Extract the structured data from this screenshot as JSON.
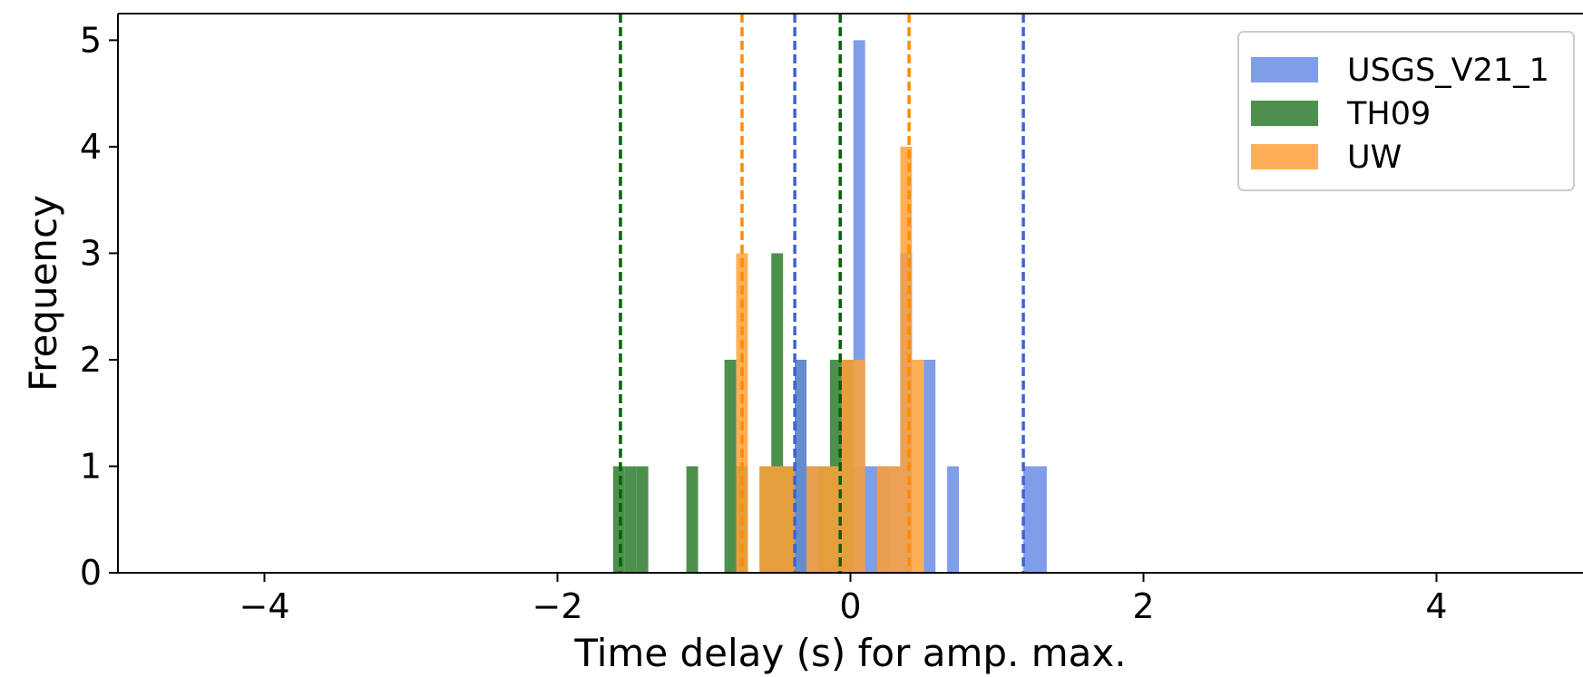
{
  "chart_data": {
    "type": "bar",
    "title": "",
    "xlabel": "Time delay (s) for amp. max.",
    "ylabel": "Frequency",
    "xlim": [
      -5,
      5
    ],
    "ylim": [
      0,
      5.25
    ],
    "xticks": [
      -4,
      -2,
      0,
      2,
      4
    ],
    "xtick_labels": [
      "−4",
      "−2",
      "0",
      "2",
      "4"
    ],
    "yticks": [
      0,
      1,
      2,
      3,
      4,
      5
    ],
    "ytick_labels": [
      "0",
      "1",
      "2",
      "3",
      "4",
      "5"
    ],
    "grid": false,
    "legend_position": "top-right",
    "series": [
      {
        "name": "TH09",
        "color": "#2e7d2e",
        "bin_width": 0.08,
        "bins": [
          {
            "x": -1.62,
            "count": 1
          },
          {
            "x": -1.54,
            "count": 1
          },
          {
            "x": -1.46,
            "count": 1
          },
          {
            "x": -1.12,
            "count": 1
          },
          {
            "x": -0.86,
            "count": 2
          },
          {
            "x": -0.78,
            "count": 1
          },
          {
            "x": -0.62,
            "count": 1
          },
          {
            "x": -0.54,
            "count": 3
          },
          {
            "x": -0.46,
            "count": 1
          },
          {
            "x": -0.38,
            "count": 2
          },
          {
            "x": -0.3,
            "count": 1
          },
          {
            "x": -0.22,
            "count": 1
          },
          {
            "x": -0.14,
            "count": 2
          },
          {
            "x": -0.06,
            "count": 2
          },
          {
            "x": 0.02,
            "count": 1
          },
          {
            "x": 0.18,
            "count": 1
          }
        ],
        "vlines": [
          -1.57,
          -0.07
        ]
      },
      {
        "name": "USGS_V21_1",
        "color": "#6a8ce6",
        "bin_width": 0.08,
        "bins": [
          {
            "x": -0.38,
            "count": 2
          },
          {
            "x": -0.3,
            "count": 1
          },
          {
            "x": 0.02,
            "count": 5
          },
          {
            "x": 0.1,
            "count": 1
          },
          {
            "x": 0.18,
            "count": 1
          },
          {
            "x": 0.26,
            "count": 1
          },
          {
            "x": 0.34,
            "count": 3
          },
          {
            "x": 0.5,
            "count": 2
          },
          {
            "x": 0.66,
            "count": 1
          },
          {
            "x": 1.18,
            "count": 1
          },
          {
            "x": 1.26,
            "count": 1
          }
        ],
        "vlines": [
          -0.38,
          1.18
        ]
      },
      {
        "name": "UW",
        "color": "#ffa23a",
        "bin_width": 0.08,
        "bins": [
          {
            "x": -0.78,
            "count": 3
          },
          {
            "x": -0.62,
            "count": 1
          },
          {
            "x": -0.54,
            "count": 1
          },
          {
            "x": -0.46,
            "count": 1
          },
          {
            "x": -0.3,
            "count": 1
          },
          {
            "x": -0.22,
            "count": 1
          },
          {
            "x": -0.14,
            "count": 1
          },
          {
            "x": -0.06,
            "count": 2
          },
          {
            "x": 0.02,
            "count": 2
          },
          {
            "x": 0.18,
            "count": 1
          },
          {
            "x": 0.26,
            "count": 1
          },
          {
            "x": 0.34,
            "count": 4
          },
          {
            "x": 0.42,
            "count": 2
          }
        ],
        "vlines": [
          -0.74,
          0.4
        ]
      }
    ],
    "legend_order": [
      "USGS_V21_1",
      "TH09",
      "UW"
    ],
    "vline_colors": {
      "TH09": "#006400",
      "USGS_V21_1": "#3f63d4",
      "UW": "#ff8c00"
    }
  }
}
